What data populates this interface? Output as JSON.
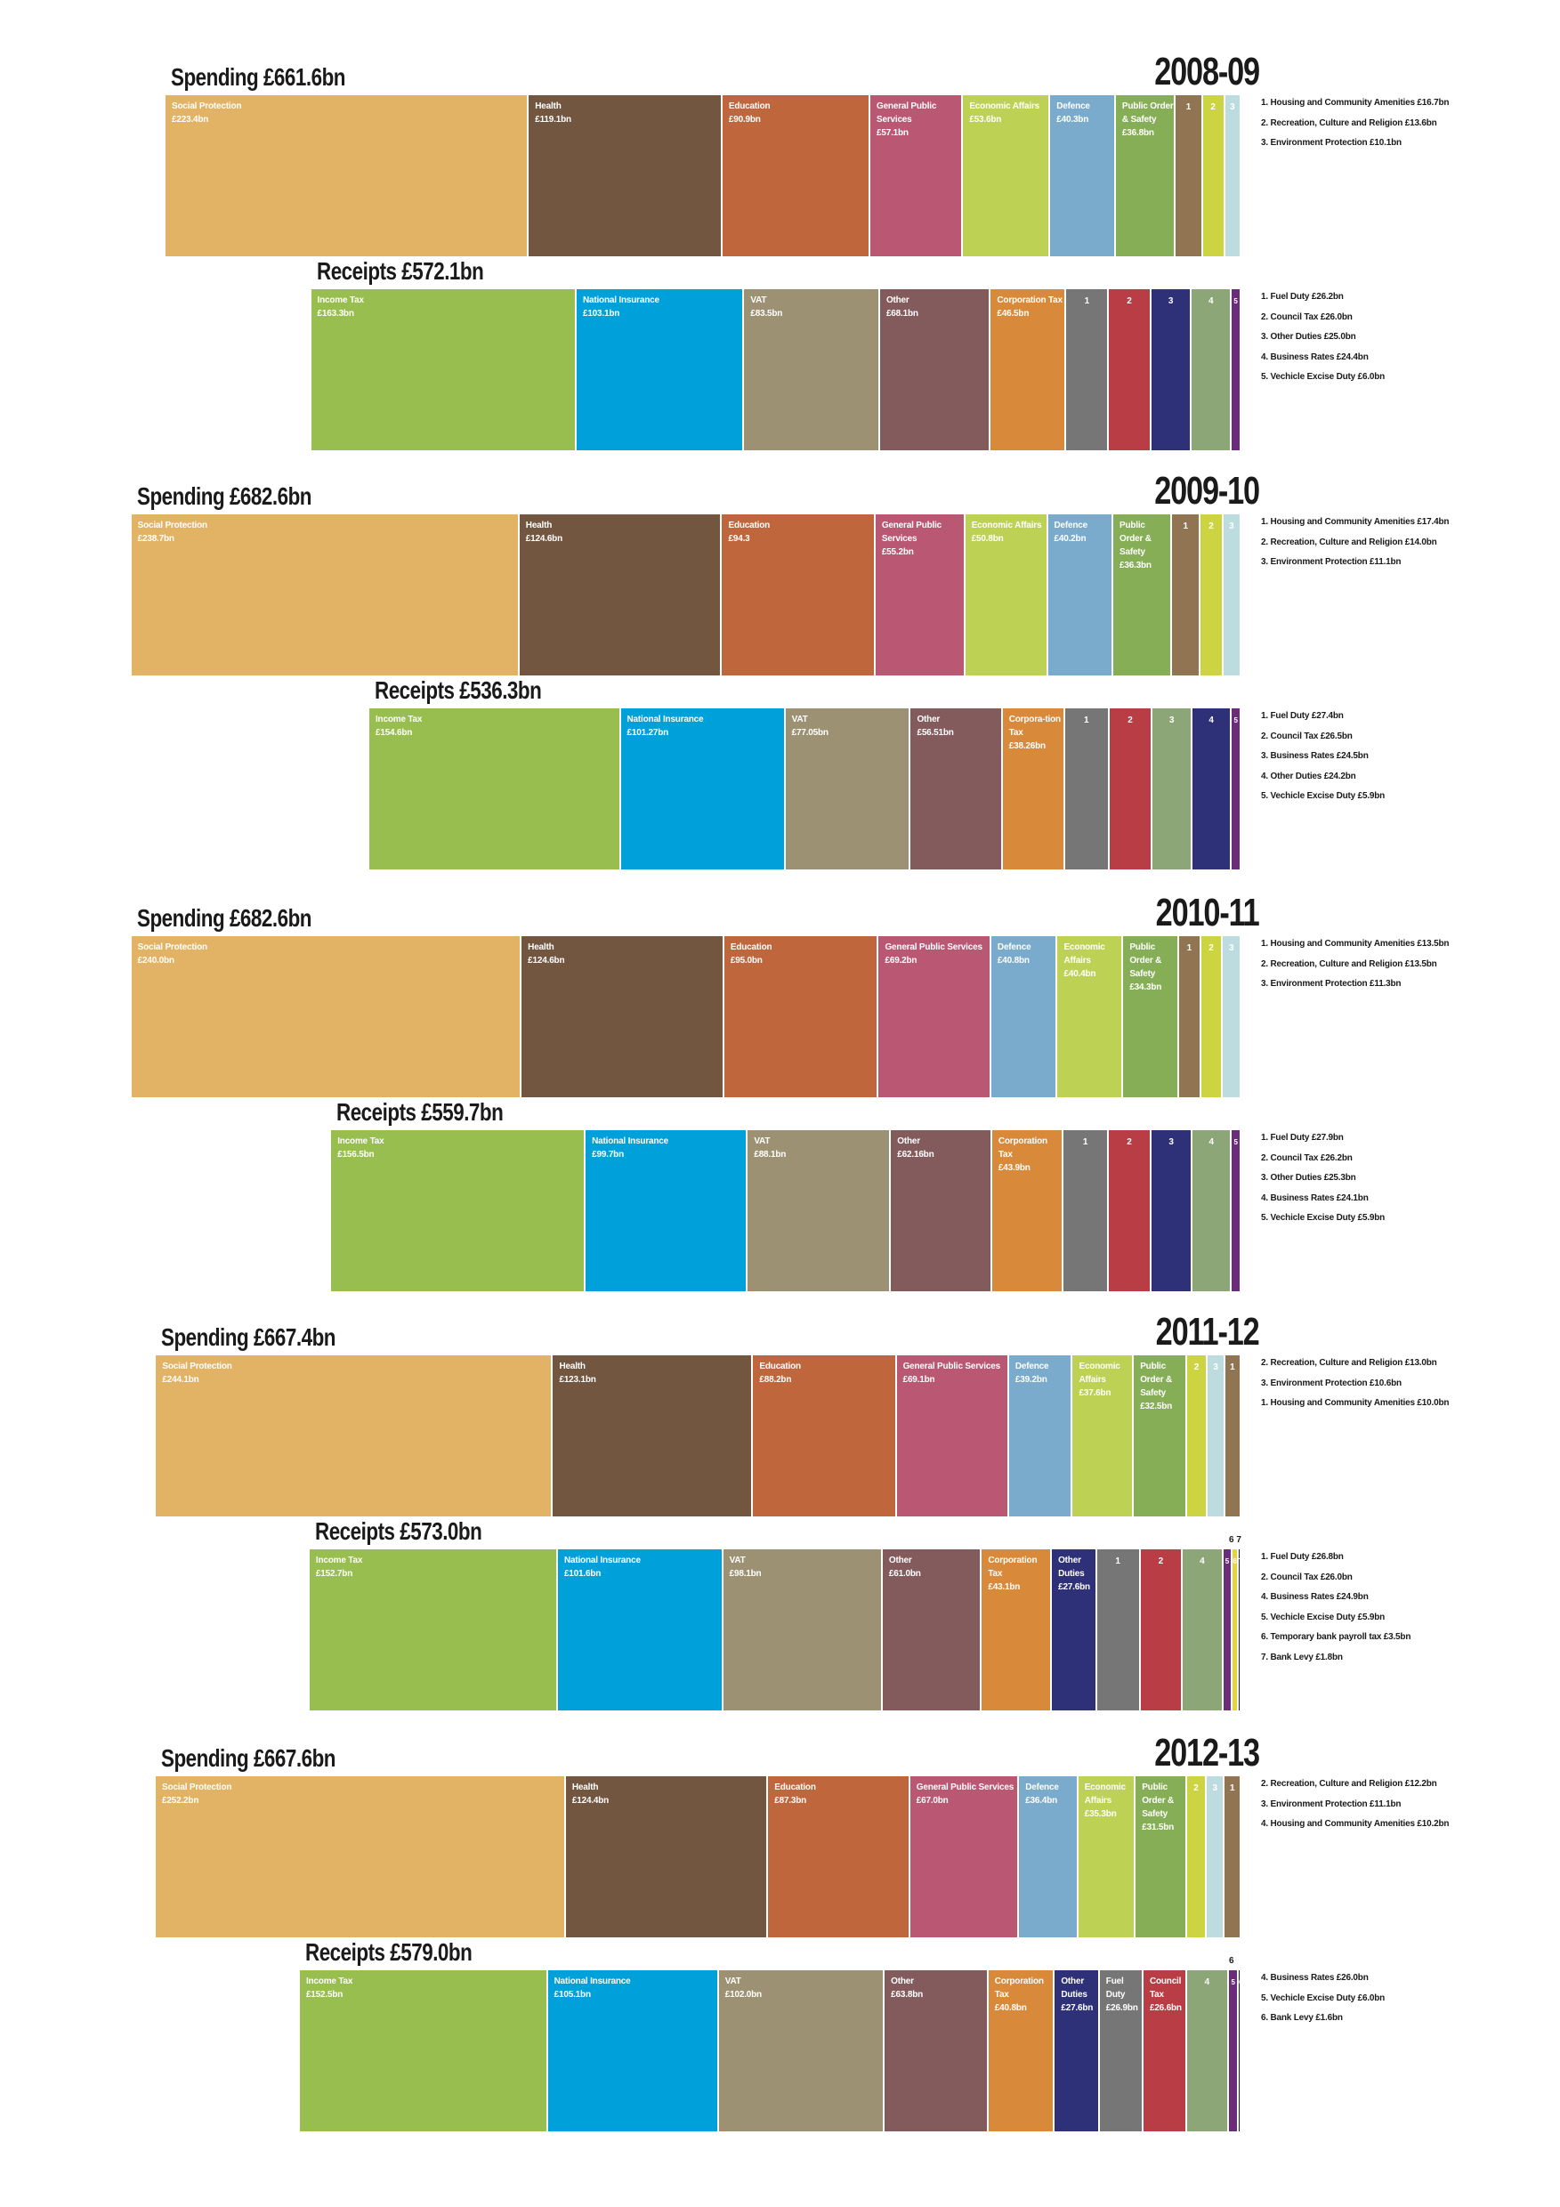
{
  "chart_data": [
    {
      "type": "bar",
      "year": "2008-09",
      "spending": {
        "title": "Spending £661.6bn",
        "total_bn": 661.6,
        "segments": [
          {
            "label": "Social Protection",
            "value_label": "£223.4bn",
            "value": 223.4,
            "color": "#E2B265"
          },
          {
            "label": "Health",
            "value_label": "£119.1bn",
            "value": 119.1,
            "color": "#725640"
          },
          {
            "label": "Education",
            "value_label": "£90.9bn",
            "value": 90.9,
            "color": "#C0663D"
          },
          {
            "label": "General Public Services",
            "value_label": "£57.1bn",
            "value": 57.1,
            "color": "#BA5773"
          },
          {
            "label": "Economic Affairs",
            "value_label": "£53.6bn",
            "value": 53.6,
            "color": "#BDD155"
          },
          {
            "label": "Defence",
            "value_label": "£40.3bn",
            "value": 40.3,
            "color": "#7AABCC"
          },
          {
            "label": "Public Order & Safety",
            "value_label": "£36.8bn",
            "value": 36.8,
            "color": "#86AE56"
          },
          {
            "label": "1",
            "value_label": "",
            "value": 16.7,
            "color": "#917553"
          },
          {
            "label": "2",
            "value_label": "",
            "value": 13.6,
            "color": "#CDD441"
          },
          {
            "label": "3",
            "value_label": "",
            "value": 10.1,
            "color": "#BCDCE0"
          }
        ],
        "notes": [
          "1. Housing and Community Amenities £16.7bn",
          "2. Recreation, Culture and Religion £13.6bn",
          "3. Environment Protection £10.1bn"
        ]
      },
      "receipts": {
        "title": "Receipts £572.1bn",
        "total_bn": 572.1,
        "segments": [
          {
            "label": "Income Tax",
            "value_label": "£163.3bn",
            "value": 163.3,
            "color": "#97BE4E"
          },
          {
            "label": "National Insurance",
            "value_label": "£103.1bn",
            "value": 103.1,
            "color": "#00A1DB"
          },
          {
            "label": "VAT",
            "value_label": "£83.5bn",
            "value": 83.5,
            "color": "#9C9172"
          },
          {
            "label": "Other",
            "value_label": "£68.1bn",
            "value": 68.1,
            "color": "#845B5D"
          },
          {
            "label": "Corporation Tax",
            "value_label": "£46.5bn",
            "value": 46.5,
            "color": "#D8893A"
          },
          {
            "label": "1",
            "value_label": "",
            "value": 26.2,
            "color": "#767676"
          },
          {
            "label": "2",
            "value_label": "",
            "value": 26.0,
            "color": "#B83D45"
          },
          {
            "label": "3",
            "value_label": "",
            "value": 25.0,
            "color": "#2E3177"
          },
          {
            "label": "4",
            "value_label": "",
            "value": 24.4,
            "color": "#8DA678"
          },
          {
            "label": "5",
            "value_label": "",
            "value": 6.0,
            "color": "#6B2C79"
          }
        ],
        "notes": [
          "1. Fuel Duty £26.2bn",
          "2. Council Tax £26.0bn",
          "3. Other Duties £25.0bn",
          "4. Business Rates £24.4bn",
          "5. Vechicle Excise Duty £6.0bn"
        ]
      }
    },
    {
      "type": "bar",
      "year": "2009-10",
      "spending": {
        "title": "Spending £682.6bn",
        "total_bn": 682.6,
        "segments": [
          {
            "label": "Social Protection",
            "value_label": "£238.7bn",
            "value": 238.7,
            "color": "#E2B265"
          },
          {
            "label": "Health",
            "value_label": "£124.6bn",
            "value": 124.6,
            "color": "#725640"
          },
          {
            "label": "Education",
            "value_label": "£94.3",
            "value": 94.3,
            "color": "#C0663D"
          },
          {
            "label": "General Public Services",
            "value_label": "£55.2bn",
            "value": 55.2,
            "color": "#BA5773"
          },
          {
            "label": "Economic Affairs",
            "value_label": "£50.8bn",
            "value": 50.8,
            "color": "#BDD155"
          },
          {
            "label": "Defence",
            "value_label": "£40.2bn",
            "value": 40.2,
            "color": "#7AABCC"
          },
          {
            "label": "Public Order & Safety",
            "value_label": "£36.3bn",
            "value": 36.3,
            "color": "#86AE56"
          },
          {
            "label": "1",
            "value_label": "",
            "value": 17.4,
            "color": "#917553"
          },
          {
            "label": "2",
            "value_label": "",
            "value": 14.0,
            "color": "#CDD441"
          },
          {
            "label": "3",
            "value_label": "",
            "value": 11.1,
            "color": "#BCDCE0"
          }
        ],
        "notes": [
          "1. Housing and Community Amenities £17.4bn",
          "2. Recreation, Culture and Religion £14.0bn",
          "3. Environment Protection £11.1bn"
        ]
      },
      "receipts": {
        "title": "Receipts £536.3bn",
        "total_bn": 536.3,
        "segments": [
          {
            "label": "Income Tax",
            "value_label": "£154.6bn",
            "value": 154.6,
            "color": "#97BE4E"
          },
          {
            "label": "National Insurance",
            "value_label": "£101.27bn",
            "value": 101.27,
            "color": "#00A1DB"
          },
          {
            "label": "VAT",
            "value_label": "£77.05bn",
            "value": 77.05,
            "color": "#9C9172"
          },
          {
            "label": "Other",
            "value_label": "£56.51bn",
            "value": 56.51,
            "color": "#845B5D"
          },
          {
            "label": "Corpora-tion Tax",
            "value_label": "£38.26bn",
            "value": 38.26,
            "color": "#D8893A"
          },
          {
            "label": "1",
            "value_label": "",
            "value": 27.4,
            "color": "#767676"
          },
          {
            "label": "2",
            "value_label": "",
            "value": 26.5,
            "color": "#B83D45"
          },
          {
            "label": "3",
            "value_label": "",
            "value": 24.5,
            "color": "#8DA678"
          },
          {
            "label": "4",
            "value_label": "",
            "value": 24.2,
            "color": "#2E3177"
          },
          {
            "label": "5",
            "value_label": "",
            "value": 5.9,
            "color": "#6B2C79"
          }
        ],
        "notes": [
          "1. Fuel Duty £27.4bn",
          "2. Council Tax £26.5bn",
          "3. Business Rates £24.5bn",
          "4. Other Duties £24.2bn",
          "5. Vechicle Excise Duty £5.9bn"
        ]
      }
    },
    {
      "type": "bar",
      "year": "2010-11",
      "spending": {
        "title": "Spending £682.6bn",
        "total_bn": 682.6,
        "segments": [
          {
            "label": "Social Protection",
            "value_label": "£240.0bn",
            "value": 240.0,
            "color": "#E2B265"
          },
          {
            "label": "Health",
            "value_label": "£124.6bn",
            "value": 124.6,
            "color": "#725640"
          },
          {
            "label": "Education",
            "value_label": "£95.0bn",
            "value": 95.0,
            "color": "#C0663D"
          },
          {
            "label": "General Public Services",
            "value_label": "£69.2bn",
            "value": 69.2,
            "color": "#BA5773"
          },
          {
            "label": "Defence",
            "value_label": "£40.8bn",
            "value": 40.8,
            "color": "#7AABCC"
          },
          {
            "label": "Economic Affairs",
            "value_label": "£40.4bn",
            "value": 40.4,
            "color": "#BDD155"
          },
          {
            "label": "Public Order & Safety",
            "value_label": "£34.3bn",
            "value": 34.3,
            "color": "#86AE56"
          },
          {
            "label": "1",
            "value_label": "",
            "value": 13.5,
            "color": "#917553"
          },
          {
            "label": "2",
            "value_label": "",
            "value": 13.5,
            "color": "#CDD441"
          },
          {
            "label": "3",
            "value_label": "",
            "value": 11.3,
            "color": "#BCDCE0"
          }
        ],
        "notes": [
          "1. Housing and Community Amenities £13.5bn",
          "2. Recreation, Culture and Religion £13.5bn",
          "3. Environment Protection £11.3bn"
        ]
      },
      "receipts": {
        "title": "Receipts £559.7bn",
        "total_bn": 559.7,
        "segments": [
          {
            "label": "Income Tax",
            "value_label": "£156.5bn",
            "value": 156.5,
            "color": "#97BE4E"
          },
          {
            "label": "National Insurance",
            "value_label": "£99.7bn",
            "value": 99.7,
            "color": "#00A1DB"
          },
          {
            "label": "VAT",
            "value_label": "£88.1bn",
            "value": 88.1,
            "color": "#9C9172"
          },
          {
            "label": "Other",
            "value_label": "£62.16bn",
            "value": 62.16,
            "color": "#845B5D"
          },
          {
            "label": "Corporation Tax",
            "value_label": "£43.9bn",
            "value": 43.9,
            "color": "#D8893A"
          },
          {
            "label": "1",
            "value_label": "",
            "value": 27.9,
            "color": "#767676"
          },
          {
            "label": "2",
            "value_label": "",
            "value": 26.2,
            "color": "#B83D45"
          },
          {
            "label": "3",
            "value_label": "",
            "value": 25.3,
            "color": "#2E3177"
          },
          {
            "label": "4",
            "value_label": "",
            "value": 24.1,
            "color": "#8DA678"
          },
          {
            "label": "5",
            "value_label": "",
            "value": 5.9,
            "color": "#6B2C79"
          }
        ],
        "notes": [
          "1. Fuel Duty £27.9bn",
          "2. Council Tax £26.2bn",
          "3. Other Duties £25.3bn",
          "4. Business Rates £24.1bn",
          "5. Vechicle Excise Duty £5.9bn"
        ]
      }
    },
    {
      "type": "bar",
      "year": "2011-12",
      "spending": {
        "title": "Spending £667.4bn",
        "total_bn": 667.4,
        "segments": [
          {
            "label": "Social Protection",
            "value_label": "£244.1bn",
            "value": 244.1,
            "color": "#E2B265"
          },
          {
            "label": "Health",
            "value_label": "£123.1bn",
            "value": 123.1,
            "color": "#725640"
          },
          {
            "label": "Education",
            "value_label": "£88.2bn",
            "value": 88.2,
            "color": "#C0663D"
          },
          {
            "label": "General Public Services",
            "value_label": "£69.1bn",
            "value": 69.1,
            "color": "#BA5773"
          },
          {
            "label": "Defence",
            "value_label": "£39.2bn",
            "value": 39.2,
            "color": "#7AABCC"
          },
          {
            "label": "Economic Affairs",
            "value_label": "£37.6bn",
            "value": 37.6,
            "color": "#BDD155"
          },
          {
            "label": "Public Order & Safety",
            "value_label": "£32.5bn",
            "value": 32.5,
            "color": "#86AE56"
          },
          {
            "label": "2",
            "value_label": "",
            "value": 13.0,
            "color": "#CDD441"
          },
          {
            "label": "3",
            "value_label": "",
            "value": 10.6,
            "color": "#BCDCE0"
          },
          {
            "label": "1",
            "value_label": "",
            "value": 10.0,
            "color": "#917553"
          }
        ],
        "notes": [
          "2. Recreation, Culture and Religion £13.0bn",
          "3. Environment Protection £10.6bn",
          "1. Housing and Community Amenities £10.0bn"
        ]
      },
      "receipts": {
        "title": "Receipts £573.0bn",
        "total_bn": 573.0,
        "segments": [
          {
            "label": "Income Tax",
            "value_label": "£152.7bn",
            "value": 152.7,
            "color": "#97BE4E"
          },
          {
            "label": "National Insurance",
            "value_label": "£101.6bn",
            "value": 101.6,
            "color": "#00A1DB"
          },
          {
            "label": "VAT",
            "value_label": "£98.1bn",
            "value": 98.1,
            "color": "#9C9172"
          },
          {
            "label": "Other",
            "value_label": "£61.0bn",
            "value": 61.0,
            "color": "#845B5D"
          },
          {
            "label": "Corporation Tax",
            "value_label": "£43.1bn",
            "value": 43.1,
            "color": "#D8893A"
          },
          {
            "label": "Other Duties",
            "value_label": "£27.6bn",
            "value": 27.6,
            "color": "#2E3177"
          },
          {
            "label": "1",
            "value_label": "",
            "value": 26.8,
            "color": "#767676"
          },
          {
            "label": "2",
            "value_label": "",
            "value": 26.0,
            "color": "#B83D45"
          },
          {
            "label": "4",
            "value_label": "",
            "value": 24.9,
            "color": "#8DA678"
          },
          {
            "label": "5",
            "value_label": "",
            "value": 5.9,
            "color": "#6B2C79"
          },
          {
            "label": "6",
            "value_label": "",
            "value": 3.5,
            "color": "#E6D33D"
          },
          {
            "label": "7",
            "value_label": "",
            "value": 1.8,
            "color": "#1A1A1A"
          }
        ],
        "top_marker": "6 7",
        "notes": [
          "1. Fuel Duty £26.8bn",
          "2. Council Tax £26.0bn",
          "4. Business Rates £24.9bn",
          "5. Vechicle Excise Duty £5.9bn",
          "6. Temporary bank payroll tax £3.5bn",
          "7. Bank Levy £1.8bn"
        ]
      }
    },
    {
      "type": "bar",
      "year": "2012-13",
      "spending": {
        "title": "Spending £667.6bn",
        "total_bn": 667.6,
        "segments": [
          {
            "label": "Social Protection",
            "value_label": "£252.2bn",
            "value": 252.2,
            "color": "#E2B265"
          },
          {
            "label": "Health",
            "value_label": "£124.4bn",
            "value": 124.4,
            "color": "#725640"
          },
          {
            "label": "Education",
            "value_label": "£87.3bn",
            "value": 87.3,
            "color": "#C0663D"
          },
          {
            "label": "General Public Services",
            "value_label": "£67.0bn",
            "value": 67.0,
            "color": "#BA5773"
          },
          {
            "label": "Defence",
            "value_label": "£36.4bn",
            "value": 36.4,
            "color": "#7AABCC"
          },
          {
            "label": "Economic Affairs",
            "value_label": "£35.3bn",
            "value": 35.3,
            "color": "#BDD155"
          },
          {
            "label": "Public Order & Safety",
            "value_label": "£31.5bn",
            "value": 31.5,
            "color": "#86AE56"
          },
          {
            "label": "2",
            "value_label": "",
            "value": 12.2,
            "color": "#CDD441"
          },
          {
            "label": "3",
            "value_label": "",
            "value": 11.1,
            "color": "#BCDCE0"
          },
          {
            "label": "1",
            "value_label": "",
            "value": 10.2,
            "color": "#917553"
          }
        ],
        "notes": [
          "2. Recreation, Culture and Religion £12.2bn",
          "3. Environment Protection £11.1bn",
          "4. Housing and Community Amenities £10.2bn"
        ]
      },
      "receipts": {
        "title": "Receipts £579.0bn",
        "total_bn": 579.0,
        "segments": [
          {
            "label": "Income Tax",
            "value_label": "£152.5bn",
            "value": 152.5,
            "color": "#97BE4E"
          },
          {
            "label": "National Insurance",
            "value_label": "£105.1bn",
            "value": 105.1,
            "color": "#00A1DB"
          },
          {
            "label": "VAT",
            "value_label": "£102.0bn",
            "value": 102.0,
            "color": "#9C9172"
          },
          {
            "label": "Other",
            "value_label": "£63.8bn",
            "value": 63.8,
            "color": "#845B5D"
          },
          {
            "label": "Corporation Tax",
            "value_label": "£40.8bn",
            "value": 40.8,
            "color": "#D8893A"
          },
          {
            "label": "Other Duties",
            "value_label": "£27.6bn",
            "value": 27.6,
            "color": "#2E3177"
          },
          {
            "label": "Fuel Duty",
            "value_label": "£26.9bn",
            "value": 26.9,
            "color": "#767676"
          },
          {
            "label": "Council Tax",
            "value_label": "£26.6bn",
            "value": 26.6,
            "color": "#B83D45"
          },
          {
            "label": "4",
            "value_label": "",
            "value": 26.0,
            "color": "#8DA678"
          },
          {
            "label": "5",
            "value_label": "",
            "value": 6.0,
            "color": "#6B2C79"
          },
          {
            "label": "6",
            "value_label": "",
            "value": 1.6,
            "color": "#1A1A1A"
          }
        ],
        "top_marker": "6",
        "notes": [
          "4. Business Rates £26.0bn",
          "5. Vechicle Excise Duty £6.0bn",
          "6. Bank Levy £1.6bn"
        ]
      }
    }
  ]
}
